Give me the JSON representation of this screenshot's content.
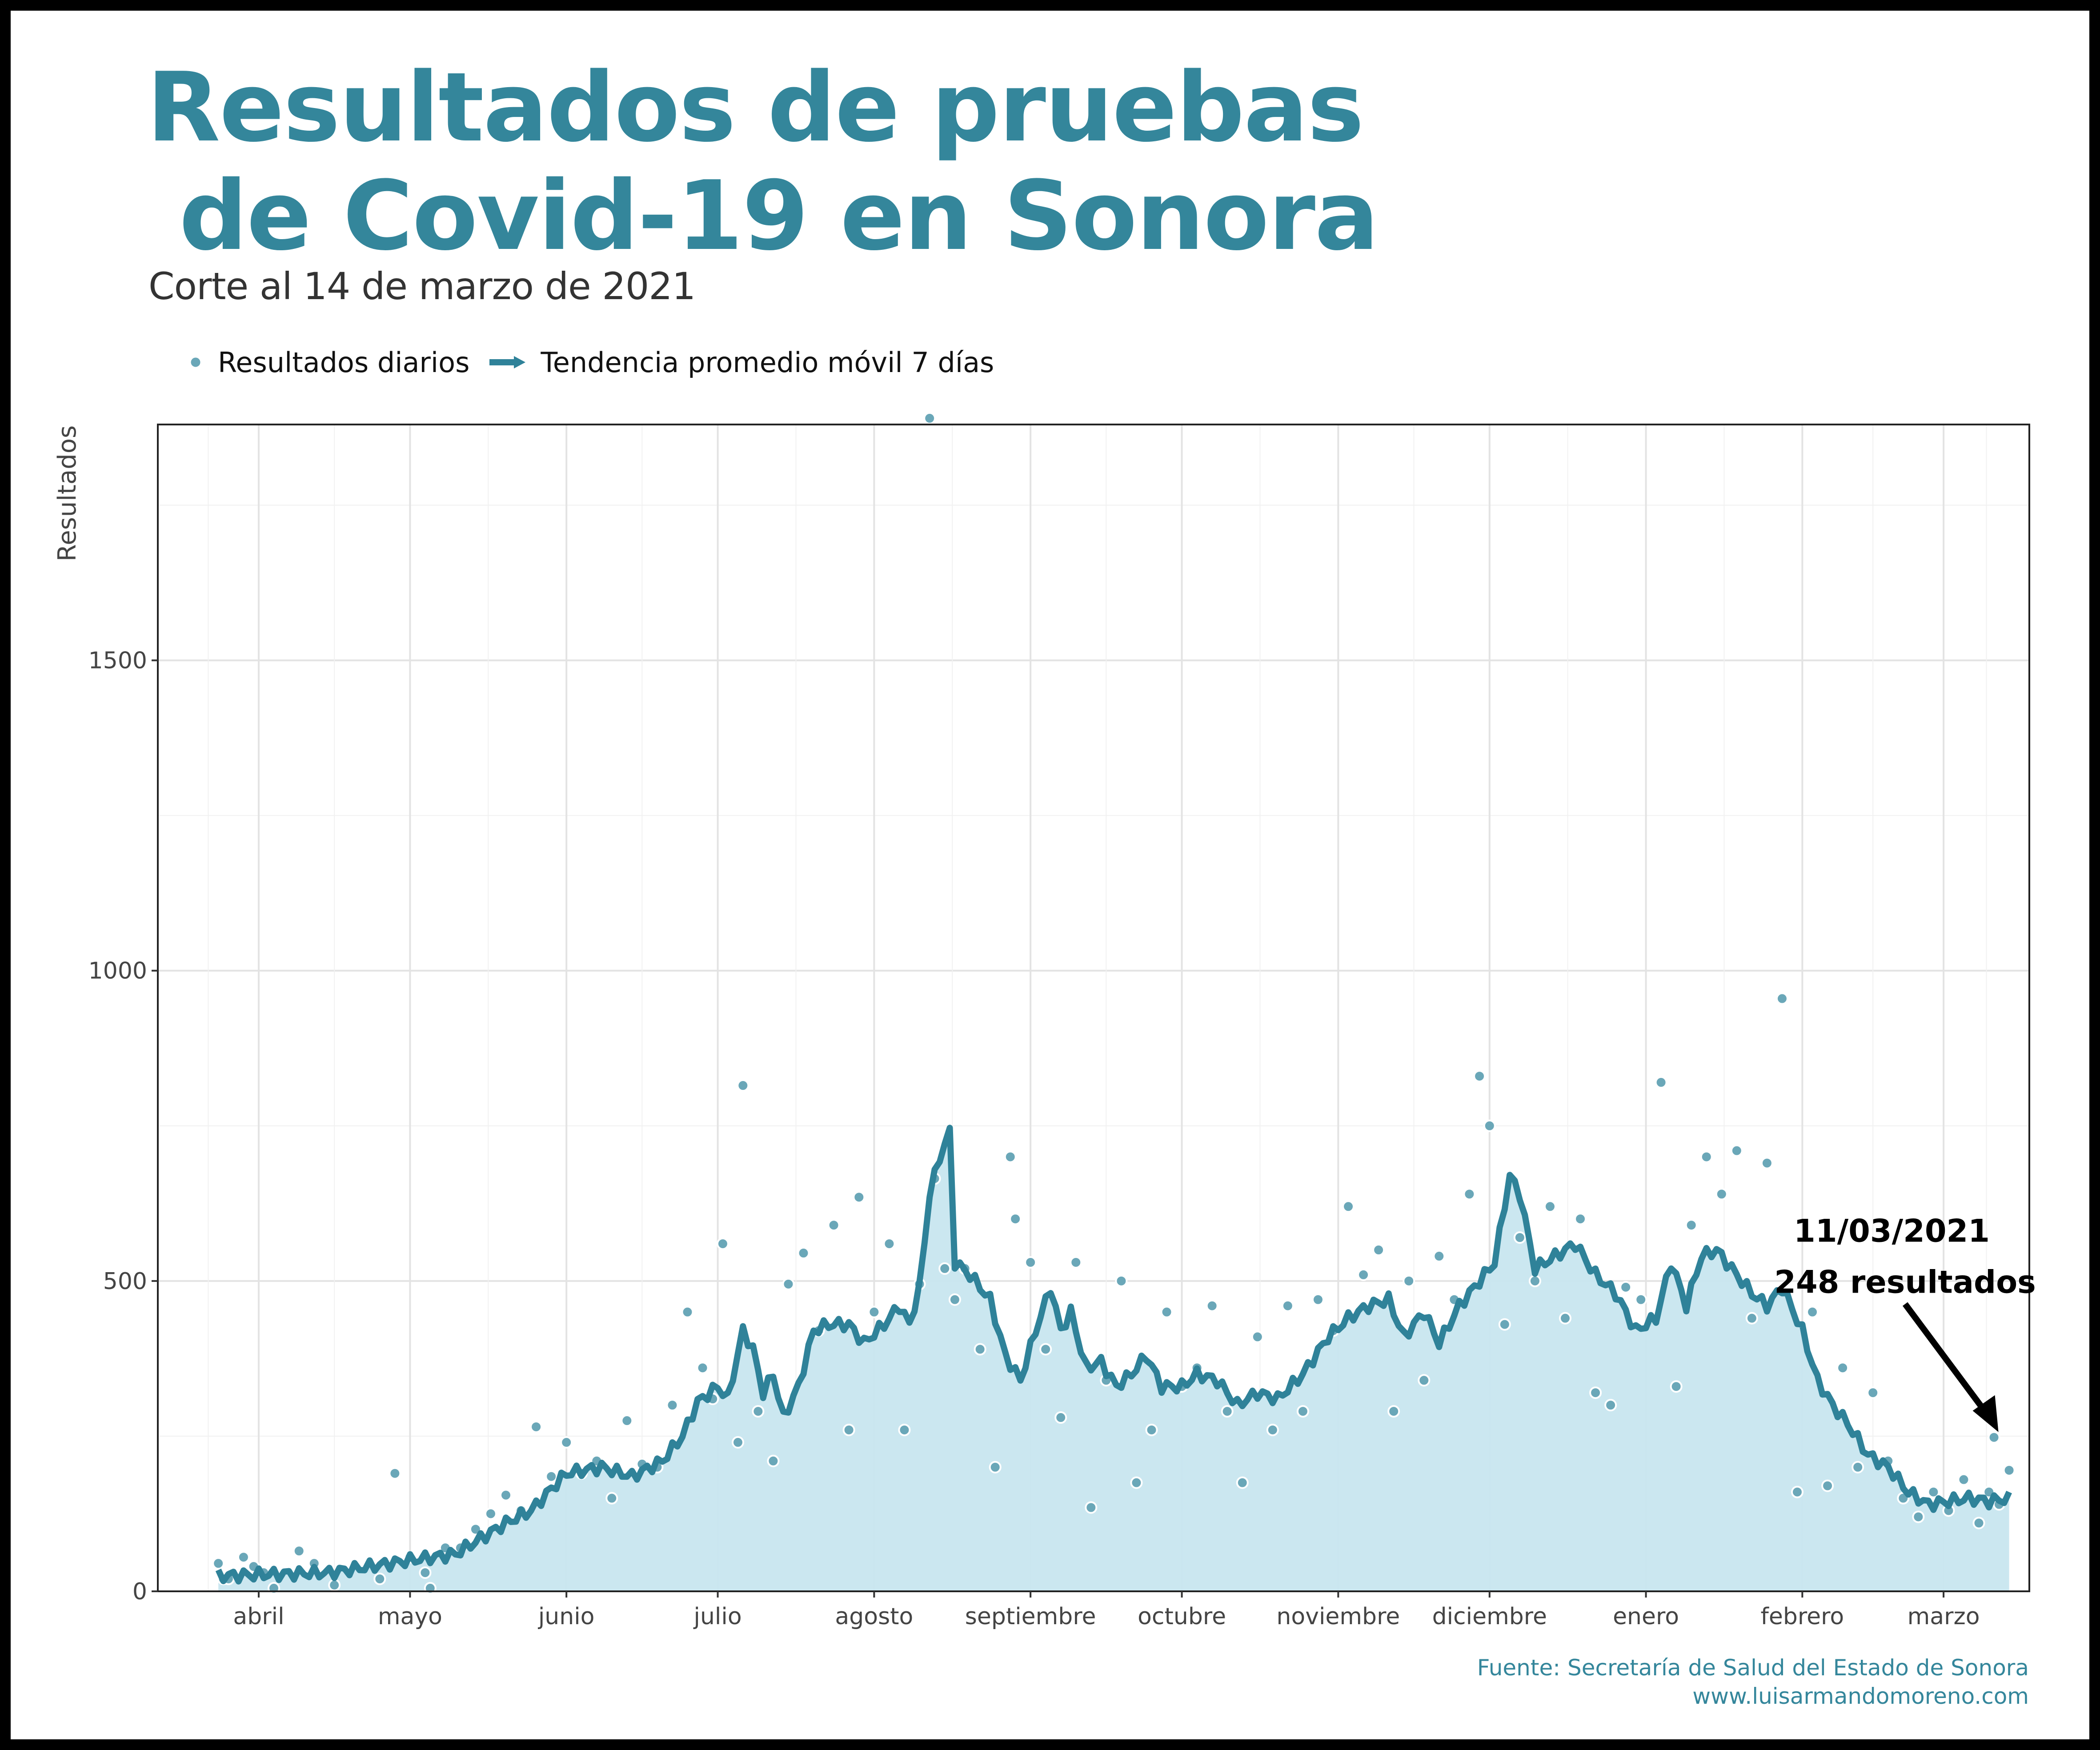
{
  "title": "Resultados de pruebas\n de Covid-19 en Sonora",
  "subtitle": "Corte al 14 de marzo de 2021",
  "legend": {
    "daily_label": "Resultados diarios",
    "trend_label": "Tendencia promedio móvil 7 días"
  },
  "source": {
    "line1": "Fuente: Secretaría de Salud del Estado de Sonora",
    "line2": "www.luisarmandomoreno.com"
  },
  "colors": {
    "accent": "#34869b",
    "points": "#6aa7b8",
    "area": "#c8e6ef",
    "line": "#2f8299",
    "grid": "#e6e6e6"
  },
  "chart_data": {
    "type": "line",
    "title": "Resultados de pruebas de Covid-19 en Sonora",
    "subtitle": "Corte al 14 de marzo de 2021",
    "xlabel": "",
    "ylabel": "Resultados",
    "x_start": "2020-03-24",
    "x_end": "2021-03-14",
    "xlim": [
      "2020-03-12",
      "2021-03-18"
    ],
    "ylim": [
      0,
      1880
    ],
    "y_ticks": [
      0,
      500,
      1000,
      1500
    ],
    "x_ticks": [
      {
        "label": "abril",
        "date": "2020-04-01"
      },
      {
        "label": "mayo",
        "date": "2020-05-01"
      },
      {
        "label": "junio",
        "date": "2020-06-01"
      },
      {
        "label": "julio",
        "date": "2020-07-01"
      },
      {
        "label": "agosto",
        "date": "2020-08-01"
      },
      {
        "label": "septiembre",
        "date": "2020-09-01"
      },
      {
        "label": "octubre",
        "date": "2020-10-01"
      },
      {
        "label": "noviembre",
        "date": "2020-11-01"
      },
      {
        "label": "diciembre",
        "date": "2020-12-01"
      },
      {
        "label": "enero",
        "date": "2021-01-01"
      },
      {
        "label": "febrero",
        "date": "2021-02-01"
      },
      {
        "label": "marzo",
        "date": "2021-03-01"
      }
    ],
    "grid": true,
    "legend_position": "top-left",
    "series": [
      {
        "name": "Resultados diarios",
        "kind": "points",
        "anchors": [
          [
            "2020-03-24",
            45
          ],
          [
            "2020-03-25",
            20
          ],
          [
            "2020-03-26",
            20
          ],
          [
            "2020-03-29",
            55
          ],
          [
            "2020-03-31",
            40
          ],
          [
            "2020-04-02",
            30
          ],
          [
            "2020-04-04",
            5
          ],
          [
            "2020-04-09",
            65
          ],
          [
            "2020-04-12",
            45
          ],
          [
            "2020-04-16",
            10
          ],
          [
            "2020-04-25",
            20
          ],
          [
            "2020-04-28",
            190
          ],
          [
            "2020-05-01",
            55
          ],
          [
            "2020-05-04",
            30
          ],
          [
            "2020-05-05",
            5
          ],
          [
            "2020-05-08",
            70
          ],
          [
            "2020-05-11",
            70
          ],
          [
            "2020-05-14",
            100
          ],
          [
            "2020-05-17",
            125
          ],
          [
            "2020-05-20",
            155
          ],
          [
            "2020-05-23",
            130
          ],
          [
            "2020-05-26",
            265
          ],
          [
            "2020-05-29",
            185
          ],
          [
            "2020-06-01",
            240
          ],
          [
            "2020-06-04",
            190
          ],
          [
            "2020-06-07",
            210
          ],
          [
            "2020-06-10",
            150
          ],
          [
            "2020-06-13",
            275
          ],
          [
            "2020-06-16",
            205
          ],
          [
            "2020-06-19",
            200
          ],
          [
            "2020-06-22",
            300
          ],
          [
            "2020-06-25",
            450
          ],
          [
            "2020-06-28",
            360
          ],
          [
            "2020-06-30",
            310
          ],
          [
            "2020-07-02",
            560
          ],
          [
            "2020-07-05",
            240
          ],
          [
            "2020-07-06",
            815
          ],
          [
            "2020-07-09",
            290
          ],
          [
            "2020-07-12",
            210
          ],
          [
            "2020-07-15",
            495
          ],
          [
            "2020-07-18",
            545
          ],
          [
            "2020-07-21",
            420
          ],
          [
            "2020-07-24",
            590
          ],
          [
            "2020-07-27",
            260
          ],
          [
            "2020-07-29",
            635
          ],
          [
            "2020-08-01",
            450
          ],
          [
            "2020-08-04",
            560
          ],
          [
            "2020-08-07",
            260
          ],
          [
            "2020-08-10",
            495
          ],
          [
            "2020-08-12",
            1890
          ],
          [
            "2020-08-13",
            665
          ],
          [
            "2020-08-15",
            520
          ],
          [
            "2020-08-17",
            470
          ],
          [
            "2020-08-19",
            520
          ],
          [
            "2020-08-22",
            390
          ],
          [
            "2020-08-25",
            200
          ],
          [
            "2020-08-28",
            700
          ],
          [
            "2020-08-29",
            600
          ],
          [
            "2020-09-01",
            530
          ],
          [
            "2020-09-04",
            390
          ],
          [
            "2020-09-07",
            280
          ],
          [
            "2020-09-10",
            530
          ],
          [
            "2020-09-13",
            135
          ],
          [
            "2020-09-16",
            340
          ],
          [
            "2020-09-19",
            500
          ],
          [
            "2020-09-22",
            175
          ],
          [
            "2020-09-25",
            260
          ],
          [
            "2020-09-28",
            450
          ],
          [
            "2020-10-01",
            330
          ],
          [
            "2020-10-04",
            360
          ],
          [
            "2020-10-07",
            460
          ],
          [
            "2020-10-10",
            290
          ],
          [
            "2020-10-13",
            175
          ],
          [
            "2020-10-16",
            410
          ],
          [
            "2020-10-19",
            260
          ],
          [
            "2020-10-22",
            460
          ],
          [
            "2020-10-25",
            290
          ],
          [
            "2020-10-28",
            470
          ],
          [
            "2020-10-31",
            420
          ],
          [
            "2020-11-03",
            620
          ],
          [
            "2020-11-06",
            510
          ],
          [
            "2020-11-09",
            550
          ],
          [
            "2020-11-12",
            290
          ],
          [
            "2020-11-15",
            500
          ],
          [
            "2020-11-18",
            340
          ],
          [
            "2020-11-21",
            540
          ],
          [
            "2020-11-24",
            470
          ],
          [
            "2020-11-27",
            640
          ],
          [
            "2020-11-29",
            830
          ],
          [
            "2020-12-01",
            750
          ],
          [
            "2020-12-04",
            430
          ],
          [
            "2020-12-07",
            570
          ],
          [
            "2020-12-10",
            500
          ],
          [
            "2020-12-13",
            620
          ],
          [
            "2020-12-16",
            440
          ],
          [
            "2020-12-19",
            600
          ],
          [
            "2020-12-22",
            320
          ],
          [
            "2020-12-25",
            300
          ],
          [
            "2020-12-28",
            490
          ],
          [
            "2020-12-31",
            470
          ],
          [
            "2021-01-04",
            820
          ],
          [
            "2021-01-07",
            330
          ],
          [
            "2021-01-10",
            590
          ],
          [
            "2021-01-13",
            700
          ],
          [
            "2021-01-16",
            640
          ],
          [
            "2021-01-19",
            710
          ],
          [
            "2021-01-22",
            440
          ],
          [
            "2021-01-25",
            690
          ],
          [
            "2021-01-28",
            955
          ],
          [
            "2021-01-31",
            160
          ],
          [
            "2021-02-03",
            450
          ],
          [
            "2021-02-06",
            170
          ],
          [
            "2021-02-09",
            360
          ],
          [
            "2021-02-12",
            200
          ],
          [
            "2021-02-15",
            320
          ],
          [
            "2021-02-18",
            210
          ],
          [
            "2021-02-21",
            150
          ],
          [
            "2021-02-24",
            120
          ],
          [
            "2021-02-27",
            160
          ],
          [
            "2021-03-02",
            130
          ],
          [
            "2021-03-05",
            180
          ],
          [
            "2021-03-08",
            110
          ],
          [
            "2021-03-10",
            160
          ],
          [
            "2021-03-11",
            248
          ],
          [
            "2021-03-12",
            140
          ],
          [
            "2021-03-14",
            195
          ]
        ]
      },
      {
        "name": "Tendencia promedio móvil 7 días",
        "kind": "line",
        "anchors": [
          [
            "2020-03-24",
            25
          ],
          [
            "2020-04-15",
            30
          ],
          [
            "2020-05-01",
            50
          ],
          [
            "2020-05-10",
            60
          ],
          [
            "2020-05-15",
            85
          ],
          [
            "2020-05-20",
            110
          ],
          [
            "2020-05-25",
            130
          ],
          [
            "2020-05-29",
            165
          ],
          [
            "2020-06-01",
            190
          ],
          [
            "2020-06-08",
            200
          ],
          [
            "2020-06-14",
            185
          ],
          [
            "2020-06-20",
            210
          ],
          [
            "2020-06-24",
            250
          ],
          [
            "2020-06-27",
            305
          ],
          [
            "2020-07-01",
            330
          ],
          [
            "2020-07-03",
            310
          ],
          [
            "2020-07-06",
            420
          ],
          [
            "2020-07-08",
            390
          ],
          [
            "2020-07-10",
            320
          ],
          [
            "2020-07-12",
            350
          ],
          [
            "2020-07-14",
            280
          ],
          [
            "2020-07-17",
            330
          ],
          [
            "2020-07-20",
            420
          ],
          [
            "2020-07-23",
            430
          ],
          [
            "2020-07-27",
            430
          ],
          [
            "2020-07-30",
            400
          ],
          [
            "2020-08-03",
            430
          ],
          [
            "2020-08-06",
            460
          ],
          [
            "2020-08-08",
            430
          ],
          [
            "2020-08-10",
            490
          ],
          [
            "2020-08-12",
            640
          ],
          [
            "2020-08-14",
            700
          ],
          [
            "2020-08-16",
            740
          ],
          [
            "2020-08-17",
            530
          ],
          [
            "2020-08-20",
            510
          ],
          [
            "2020-08-24",
            470
          ],
          [
            "2020-08-27",
            380
          ],
          [
            "2020-08-30",
            340
          ],
          [
            "2020-09-02",
            420
          ],
          [
            "2020-09-05",
            490
          ],
          [
            "2020-09-07",
            420
          ],
          [
            "2020-09-09",
            450
          ],
          [
            "2020-09-12",
            360
          ],
          [
            "2020-09-15",
            370
          ],
          [
            "2020-09-18",
            330
          ],
          [
            "2020-09-21",
            350
          ],
          [
            "2020-09-24",
            380
          ],
          [
            "2020-09-27",
            330
          ],
          [
            "2020-10-01",
            330
          ],
          [
            "2020-10-04",
            350
          ],
          [
            "2020-10-08",
            340
          ],
          [
            "2020-10-12",
            300
          ],
          [
            "2020-10-16",
            320
          ],
          [
            "2020-10-20",
            310
          ],
          [
            "2020-10-25",
            350
          ],
          [
            "2020-10-30",
            410
          ],
          [
            "2020-11-03",
            440
          ],
          [
            "2020-11-07",
            460
          ],
          [
            "2020-11-11",
            470
          ],
          [
            "2020-11-14",
            410
          ],
          [
            "2020-11-18",
            450
          ],
          [
            "2020-11-21",
            400
          ],
          [
            "2020-11-25",
            460
          ],
          [
            "2020-11-29",
            500
          ],
          [
            "2020-12-02",
            530
          ],
          [
            "2020-12-05",
            670
          ],
          [
            "2020-12-07",
            640
          ],
          [
            "2020-12-10",
            520
          ],
          [
            "2020-12-14",
            540
          ],
          [
            "2020-12-18",
            560
          ],
          [
            "2020-12-22",
            510
          ],
          [
            "2020-12-26",
            480
          ],
          [
            "2020-12-30",
            420
          ],
          [
            "2021-01-03",
            440
          ],
          [
            "2021-01-06",
            530
          ],
          [
            "2021-01-09",
            460
          ],
          [
            "2021-01-12",
            540
          ],
          [
            "2021-01-15",
            550
          ],
          [
            "2021-01-18",
            520
          ],
          [
            "2021-01-22",
            480
          ],
          [
            "2021-01-25",
            460
          ],
          [
            "2021-01-28",
            490
          ],
          [
            "2021-02-01",
            420
          ],
          [
            "2021-02-04",
            340
          ],
          [
            "2021-02-07",
            300
          ],
          [
            "2021-02-10",
            270
          ],
          [
            "2021-02-14",
            220
          ],
          [
            "2021-02-18",
            200
          ],
          [
            "2021-02-22",
            160
          ],
          [
            "2021-02-26",
            140
          ],
          [
            "2021-03-02",
            145
          ],
          [
            "2021-03-06",
            150
          ],
          [
            "2021-03-10",
            145
          ],
          [
            "2021-03-14",
            150
          ]
        ]
      }
    ],
    "annotations": [
      {
        "date_label": "11/03/2021",
        "value_label": "248 resultados",
        "x": "2021-03-11",
        "y": 248
      }
    ]
  }
}
